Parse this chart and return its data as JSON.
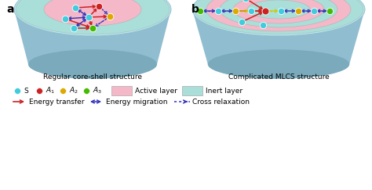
{
  "fig_width": 4.74,
  "fig_height": 2.43,
  "dpi": 100,
  "bg_color": "#ffffff",
  "color_S": "#40CCDD",
  "color_A1": "#CC2222",
  "color_A2": "#DDAA00",
  "color_A3": "#44BB00",
  "color_active": "#F5B8C8",
  "color_inert": "#AADED8",
  "color_bowl_outer": "#B8E8F0",
  "color_bowl_side": "#90BED0",
  "color_bowl_bottom": "#7AAABB",
  "color_energy_transfer": "#CC2222",
  "color_energy_migration": "#3333BB",
  "color_cross_relaxation": "#3333BB",
  "title_left": "Regular core-shell structure",
  "title_right": "Complicated MLCS structure",
  "panel_a_label": "a",
  "panel_b_label": "b"
}
